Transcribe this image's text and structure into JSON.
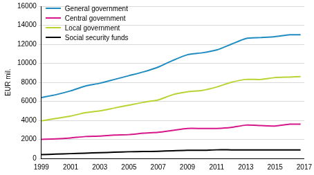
{
  "chart_data": {
    "type": "line",
    "y_label": "EUR mil.",
    "x": [
      1999,
      2000,
      2001,
      2002,
      2003,
      2004,
      2005,
      2006,
      2007,
      2008,
      2009,
      2010,
      2011,
      2012,
      2013,
      2014,
      2015,
      2016,
      2016.75
    ],
    "series": [
      {
        "name": "General government",
        "color": "#1f8cc1",
        "values": [
          6400,
          6700,
          7100,
          7600,
          7900,
          8300,
          8700,
          9100,
          9600,
          10300,
          10900,
          11100,
          11400,
          12000,
          12600,
          12700,
          12800,
          13000,
          13000
        ]
      },
      {
        "name": "Central government",
        "color": "#d6178a",
        "values": [
          2000,
          2050,
          2150,
          2300,
          2350,
          2450,
          2500,
          2650,
          2750,
          2950,
          3150,
          3150,
          3150,
          3250,
          3500,
          3450,
          3400,
          3600,
          3600
        ]
      },
      {
        "name": "Local government",
        "color": "#b8d432",
        "values": [
          3950,
          4200,
          4450,
          4800,
          5000,
          5300,
          5600,
          5900,
          6150,
          6700,
          7000,
          7150,
          7500,
          8000,
          8300,
          8300,
          8500,
          8550,
          8600
        ]
      },
      {
        "name": "Social security funds",
        "color": "#000000",
        "values": [
          400,
          450,
          500,
          550,
          600,
          650,
          700,
          720,
          750,
          800,
          850,
          850,
          900,
          900,
          900,
          900,
          900,
          900,
          900
        ]
      }
    ],
    "xlim": [
      1999,
      2017
    ],
    "xticks": [
      1999,
      2001,
      2003,
      2005,
      2007,
      2009,
      2011,
      2013,
      2015,
      2017
    ],
    "ylim": [
      0,
      16000
    ],
    "yticks": [
      0,
      2000,
      4000,
      6000,
      8000,
      10000,
      12000,
      14000,
      16000
    ],
    "grid": true,
    "legend": "upper left"
  }
}
